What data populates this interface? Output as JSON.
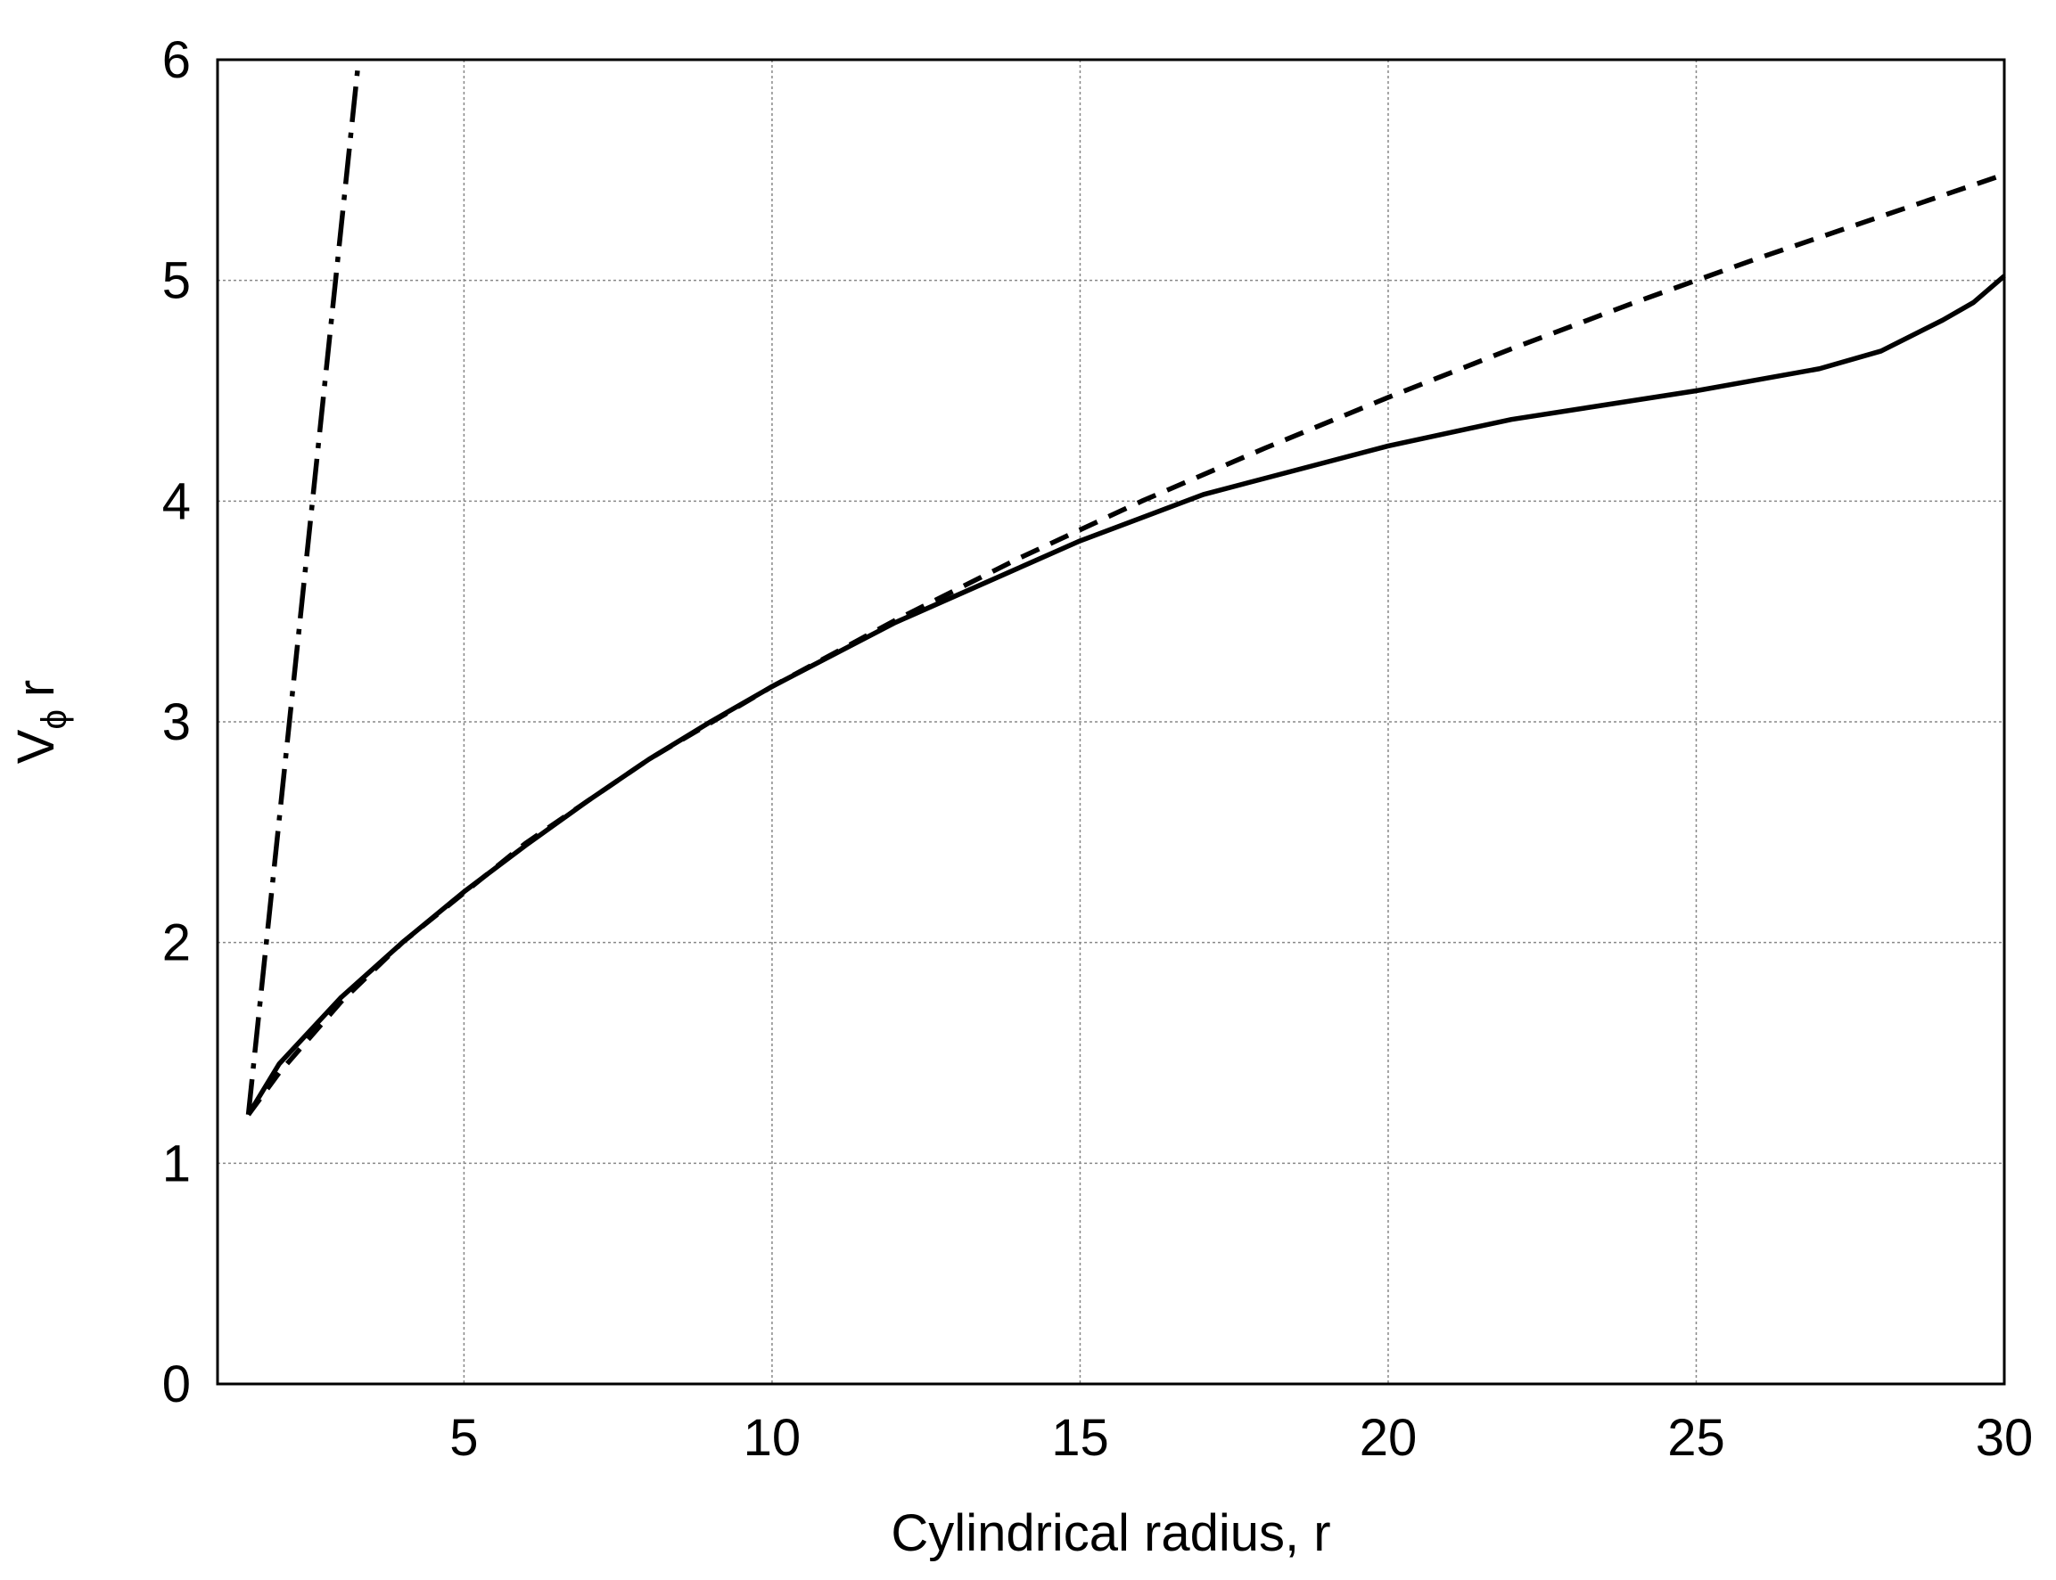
{
  "chart_data": {
    "type": "line",
    "xlabel": "Cylindrical radius, r",
    "ylabel": [
      "V",
      "ϕ",
      "r"
    ],
    "xlim": [
      1,
      30
    ],
    "xticks": [
      5,
      10,
      15,
      20,
      25,
      30
    ],
    "ylim": [
      0,
      6
    ],
    "yticks": [
      0,
      1,
      2,
      3,
      4,
      5,
      6
    ],
    "grid": true,
    "series": [
      {
        "color": "#000000",
        "style": "solid",
        "x": [
          1.5,
          2,
          3,
          4,
          5,
          6,
          7,
          8,
          9,
          10,
          12,
          15,
          17,
          20,
          22,
          25,
          27,
          28,
          29,
          29.5,
          30
        ],
        "values": [
          1.22,
          1.45,
          1.75,
          2.0,
          2.23,
          2.44,
          2.64,
          2.83,
          3.0,
          3.16,
          3.45,
          3.82,
          4.03,
          4.25,
          4.37,
          4.5,
          4.6,
          4.68,
          4.82,
          4.9,
          5.02
        ]
      },
      {
        "color": "#000000",
        "style": "dashed",
        "x": [
          1.5,
          2,
          3,
          4,
          6,
          8,
          10,
          12,
          14,
          16,
          18,
          20,
          22,
          24,
          26,
          28,
          30
        ],
        "values": [
          1.22,
          1.41,
          1.73,
          2.0,
          2.45,
          2.83,
          3.16,
          3.46,
          3.74,
          4.0,
          4.24,
          4.47,
          4.69,
          4.9,
          5.1,
          5.29,
          5.48
        ]
      },
      {
        "color": "#000000",
        "style": "dashdot",
        "x": [
          1.5,
          3.29
        ],
        "values": [
          1.22,
          6
        ]
      }
    ]
  }
}
